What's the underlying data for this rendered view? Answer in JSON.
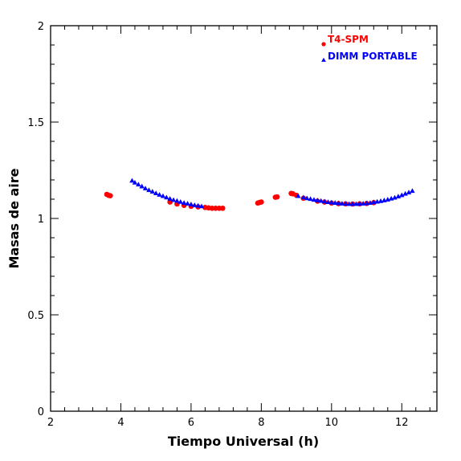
{
  "chart_data": {
    "type": "scatter",
    "title": "",
    "xlabel": "Tiempo Universal (h)",
    "ylabel": "Masas de aire",
    "xlim": [
      2,
      13
    ],
    "ylim": [
      0,
      2
    ],
    "x_ticks": [
      2,
      4,
      6,
      8,
      10,
      12
    ],
    "y_ticks": [
      0,
      0.5,
      1,
      1.5,
      2
    ],
    "x_tick_labels": [
      "2",
      "4",
      "6",
      "8",
      "10",
      "12"
    ],
    "y_tick_labels": [
      "0",
      "0.5",
      "1",
      "1.5",
      "2"
    ],
    "x_minor_step": 0.4,
    "y_minor_step": 0.1,
    "grid": false,
    "legend_position": "top-right",
    "series": [
      {
        "name": "T4-SPM",
        "marker": "circle",
        "color": "#ff0000",
        "points": [
          [
            3.6,
            1.125
          ],
          [
            3.65,
            1.12
          ],
          [
            3.7,
            1.118
          ],
          [
            5.4,
            1.085
          ],
          [
            5.6,
            1.075
          ],
          [
            5.8,
            1.068
          ],
          [
            6.0,
            1.063
          ],
          [
            6.2,
            1.06
          ],
          [
            6.4,
            1.057
          ],
          [
            6.5,
            1.055
          ],
          [
            6.6,
            1.053
          ],
          [
            6.7,
            1.053
          ],
          [
            6.8,
            1.053
          ],
          [
            6.9,
            1.053
          ],
          [
            7.9,
            1.08
          ],
          [
            7.95,
            1.083
          ],
          [
            8.0,
            1.085
          ],
          [
            8.4,
            1.11
          ],
          [
            8.45,
            1.112
          ],
          [
            8.85,
            1.13
          ],
          [
            8.9,
            1.128
          ],
          [
            9.0,
            1.12
          ],
          [
            9.2,
            1.105
          ],
          [
            9.6,
            1.09
          ],
          [
            9.8,
            1.085
          ],
          [
            10.0,
            1.08
          ],
          [
            10.2,
            1.077
          ],
          [
            10.4,
            1.076
          ],
          [
            10.6,
            1.075
          ],
          [
            10.8,
            1.076
          ],
          [
            11.0,
            1.078
          ],
          [
            11.2,
            1.082
          ]
        ]
      },
      {
        "name": "DIMM PORTABLE",
        "marker": "triangle",
        "color": "#0000ff",
        "points": [
          [
            4.32,
            1.195
          ],
          [
            4.4,
            1.185
          ],
          [
            4.5,
            1.175
          ],
          [
            4.6,
            1.165
          ],
          [
            4.7,
            1.155
          ],
          [
            4.8,
            1.146
          ],
          [
            4.9,
            1.138
          ],
          [
            5.0,
            1.13
          ],
          [
            5.1,
            1.122
          ],
          [
            5.2,
            1.115
          ],
          [
            5.3,
            1.108
          ],
          [
            5.4,
            1.101
          ],
          [
            5.5,
            1.095
          ],
          [
            5.6,
            1.09
          ],
          [
            5.7,
            1.085
          ],
          [
            5.8,
            1.08
          ],
          [
            5.9,
            1.076
          ],
          [
            6.0,
            1.072
          ],
          [
            6.1,
            1.068
          ],
          [
            6.2,
            1.065
          ],
          [
            6.3,
            1.062
          ],
          [
            9.05,
            1.115
          ],
          [
            9.2,
            1.108
          ],
          [
            9.3,
            1.104
          ],
          [
            9.4,
            1.1
          ],
          [
            9.5,
            1.096
          ],
          [
            9.6,
            1.093
          ],
          [
            9.7,
            1.09
          ],
          [
            9.8,
            1.087
          ],
          [
            9.9,
            1.084
          ],
          [
            10.0,
            1.082
          ],
          [
            10.1,
            1.08
          ],
          [
            10.2,
            1.078
          ],
          [
            10.3,
            1.076
          ],
          [
            10.4,
            1.075
          ],
          [
            10.5,
            1.074
          ],
          [
            10.6,
            1.074
          ],
          [
            10.7,
            1.074
          ],
          [
            10.8,
            1.075
          ],
          [
            10.9,
            1.076
          ],
          [
            11.0,
            1.078
          ],
          [
            11.1,
            1.08
          ],
          [
            11.2,
            1.083
          ],
          [
            11.3,
            1.086
          ],
          [
            11.4,
            1.089
          ],
          [
            11.5,
            1.093
          ],
          [
            11.6,
            1.097
          ],
          [
            11.7,
            1.102
          ],
          [
            11.8,
            1.107
          ],
          [
            11.9,
            1.113
          ],
          [
            12.0,
            1.12
          ],
          [
            12.1,
            1.127
          ],
          [
            12.2,
            1.134
          ],
          [
            12.3,
            1.142
          ]
        ]
      }
    ]
  }
}
